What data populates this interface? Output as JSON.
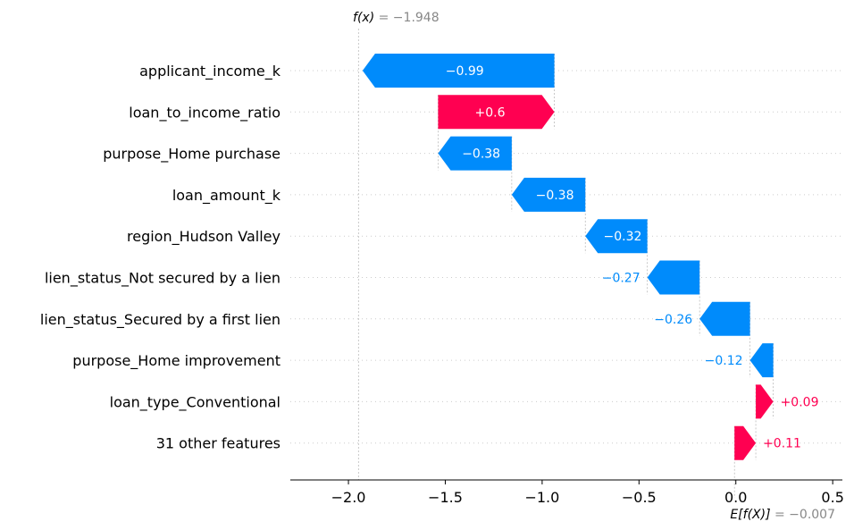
{
  "chart_data": {
    "type": "waterfall",
    "features": [
      {
        "label": "applicant_income_k",
        "value": -0.99,
        "value_label": "−0.99"
      },
      {
        "label": "loan_to_income_ratio",
        "value": 0.6,
        "value_label": "+0.6"
      },
      {
        "label": "purpose_Home purchase",
        "value": -0.38,
        "value_label": "−0.38"
      },
      {
        "label": "loan_amount_k",
        "value": -0.38,
        "value_label": "−0.38"
      },
      {
        "label": "region_Hudson Valley",
        "value": -0.32,
        "value_label": "−0.32"
      },
      {
        "label": "lien_status_Not secured by a lien",
        "value": -0.27,
        "value_label": "−0.27"
      },
      {
        "label": "lien_status_Secured by a first lien",
        "value": -0.26,
        "value_label": "−0.26"
      },
      {
        "label": "purpose_Home improvement",
        "value": -0.12,
        "value_label": "−0.12"
      },
      {
        "label": "loan_type_Conventional",
        "value": 0.09,
        "value_label": "+0.09"
      },
      {
        "label": "31 other features",
        "value": 0.11,
        "value_label": "+0.11"
      }
    ],
    "base_value": -0.007,
    "output_value": -1.948,
    "fx_label_prefix": "f(x)",
    "fx_label_value": " = −1.948",
    "efx_label_prefix": "E[f(X)]",
    "efx_label_value": " = −0.007",
    "xlim": [
      -2.3,
      0.55
    ],
    "xticks": [
      -2.0,
      -1.5,
      -1.0,
      -0.5,
      0.0,
      0.5
    ],
    "xtick_labels": [
      "−2.0",
      "−1.5",
      "−1.0",
      "−0.5",
      "0.0",
      "0.5"
    ],
    "colors": {
      "negative": "#008bfb",
      "positive": "#ff0051",
      "gridline": "#cccccc",
      "axis": "#000000"
    }
  }
}
